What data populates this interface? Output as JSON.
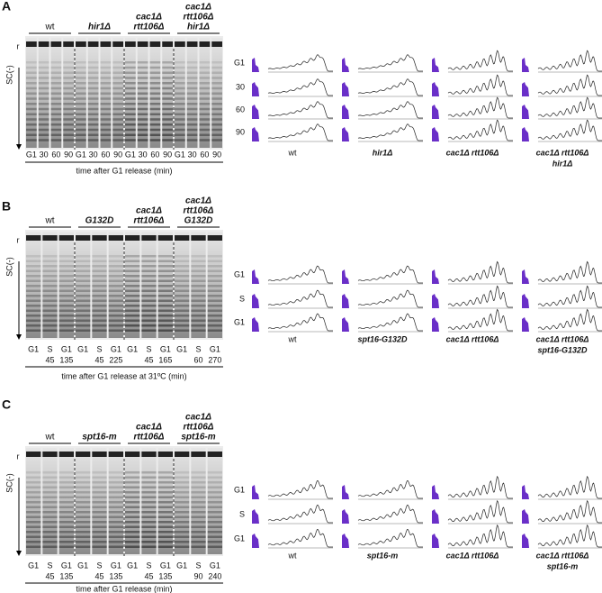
{
  "panels": [
    {
      "label": "A",
      "marker": "r",
      "axis_label": "SC(-)",
      "groups": [
        {
          "lines": [
            "wt"
          ],
          "lanes": [
            [
              "G1"
            ],
            [
              "30"
            ],
            [
              "60"
            ],
            [
              "90"
            ]
          ]
        },
        {
          "lines": [
            "hir1Δ"
          ],
          "lanes": [
            [
              "G1"
            ],
            [
              "30"
            ],
            [
              "60"
            ],
            [
              "90"
            ]
          ]
        },
        {
          "lines": [
            "cac1Δ",
            "rtt106Δ"
          ],
          "lanes": [
            [
              "G1"
            ],
            [
              "30"
            ],
            [
              "60"
            ],
            [
              "90"
            ]
          ]
        },
        {
          "lines": [
            "cac1Δ",
            "rtt106Δ",
            "hir1Δ"
          ],
          "lanes": [
            [
              "G1"
            ],
            [
              "30"
            ],
            [
              "60"
            ],
            [
              "90"
            ]
          ]
        }
      ],
      "caption": "time after G1 release (min)",
      "flow": {
        "rows": [
          "G1",
          "30",
          "60",
          "90"
        ],
        "columns": [
          {
            "lines": [
              "wt"
            ]
          },
          {
            "lines": [
              "hir1Δ"
            ]
          },
          {
            "lines": [
              "cac1Δ rtt106Δ"
            ]
          },
          {
            "lines": [
              "cac1Δ rtt106Δ",
              "hir1Δ"
            ]
          }
        ]
      }
    },
    {
      "label": "B",
      "marker": "r",
      "axis_label": "SC(-)",
      "groups": [
        {
          "lines": [
            "wt"
          ],
          "lanes": [
            [
              "G1"
            ],
            [
              "S",
              "45"
            ],
            [
              "G1",
              "135"
            ]
          ]
        },
        {
          "lines": [
            "G132D"
          ],
          "lanes": [
            [
              "G1"
            ],
            [
              "S",
              "45"
            ],
            [
              "G1",
              "225"
            ]
          ]
        },
        {
          "lines": [
            "cac1Δ",
            "rtt106Δ"
          ],
          "lanes": [
            [
              "G1"
            ],
            [
              "S",
              "45"
            ],
            [
              "G1",
              "165"
            ]
          ]
        },
        {
          "lines": [
            "cac1Δ",
            "rtt106Δ",
            "G132D"
          ],
          "lanes": [
            [
              "G1"
            ],
            [
              "S",
              "60"
            ],
            [
              "G1",
              "270"
            ]
          ]
        }
      ],
      "caption": "time after G1 release at 31ºC (min)",
      "flow": {
        "rows": [
          "G1",
          "S",
          "G1"
        ],
        "columns": [
          {
            "lines": [
              "wt"
            ]
          },
          {
            "lines": [
              "spt16-G132D"
            ]
          },
          {
            "lines": [
              "cac1Δ rtt106Δ"
            ]
          },
          {
            "lines": [
              "cac1Δ rtt106Δ",
              "spt16-G132D"
            ]
          }
        ]
      }
    },
    {
      "label": "C",
      "marker": "r",
      "axis_label": "SC(-)",
      "groups": [
        {
          "lines": [
            "wt"
          ],
          "lanes": [
            [
              "G1"
            ],
            [
              "S",
              "45"
            ],
            [
              "G1",
              "135"
            ]
          ]
        },
        {
          "lines": [
            "spt16-m"
          ],
          "lanes": [
            [
              "G1"
            ],
            [
              "S",
              "45"
            ],
            [
              "G1",
              "135"
            ]
          ]
        },
        {
          "lines": [
            "cac1Δ",
            "rtt106Δ"
          ],
          "lanes": [
            [
              "G1"
            ],
            [
              "S",
              "45"
            ],
            [
              "G1",
              "135"
            ]
          ]
        },
        {
          "lines": [
            "cac1Δ",
            "rtt106Δ",
            "spt16-m"
          ],
          "lanes": [
            [
              "G1"
            ],
            [
              "S",
              "90"
            ],
            [
              "G1",
              "240"
            ]
          ]
        }
      ],
      "caption": "time after G1 release (min)",
      "flow": {
        "rows": [
          "G1",
          "S",
          "G1"
        ],
        "columns": [
          {
            "lines": [
              "wt"
            ]
          },
          {
            "lines": [
              "spt16-m"
            ]
          },
          {
            "lines": [
              "cac1Δ rtt106Δ"
            ]
          },
          {
            "lines": [
              "cac1Δ rtt106Δ",
              "spt16-m"
            ]
          }
        ]
      }
    }
  ]
}
